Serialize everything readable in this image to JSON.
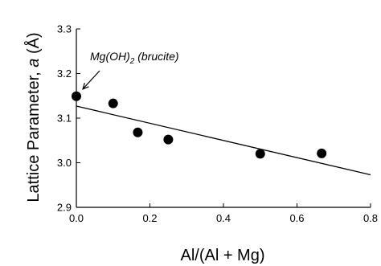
{
  "chart_data": {
    "type": "scatter",
    "xlabel": "Al/(Al + Mg)",
    "ylabel_main": "Lattice Parameter, ",
    "ylabel_symbol": "a",
    "ylabel_unit": " (Å)",
    "xlim": [
      0.0,
      0.8
    ],
    "ylim": [
      2.9,
      3.3
    ],
    "xticks": [
      0.0,
      0.2,
      0.4,
      0.6,
      0.8
    ],
    "xtick_labels": [
      "0.0",
      "0.2",
      "0.4",
      "0.6",
      "0.8"
    ],
    "yticks": [
      2.9,
      3.0,
      3.1,
      3.2,
      3.3
    ],
    "ytick_labels": [
      "2.9",
      "3.0",
      "3.1",
      "3.2",
      "3.3"
    ],
    "points": [
      {
        "x": 0.0,
        "y": 3.149
      },
      {
        "x": 0.1,
        "y": 3.133
      },
      {
        "x": 0.167,
        "y": 3.068
      },
      {
        "x": 0.25,
        "y": 3.052
      },
      {
        "x": 0.5,
        "y": 3.02
      },
      {
        "x": 0.667,
        "y": 3.021
      }
    ],
    "fit_line": {
      "x": [
        0.0,
        0.8
      ],
      "y": [
        3.127,
        2.973
      ]
    },
    "annotation": {
      "text_main": "Mg(OH)",
      "text_sub": "2",
      "text_tail": " (brucite)",
      "target": {
        "x": 0.0,
        "y": 3.149
      }
    },
    "grid": false,
    "colors": {
      "points": "#000000",
      "line": "#000000",
      "axes": "#000000"
    }
  }
}
